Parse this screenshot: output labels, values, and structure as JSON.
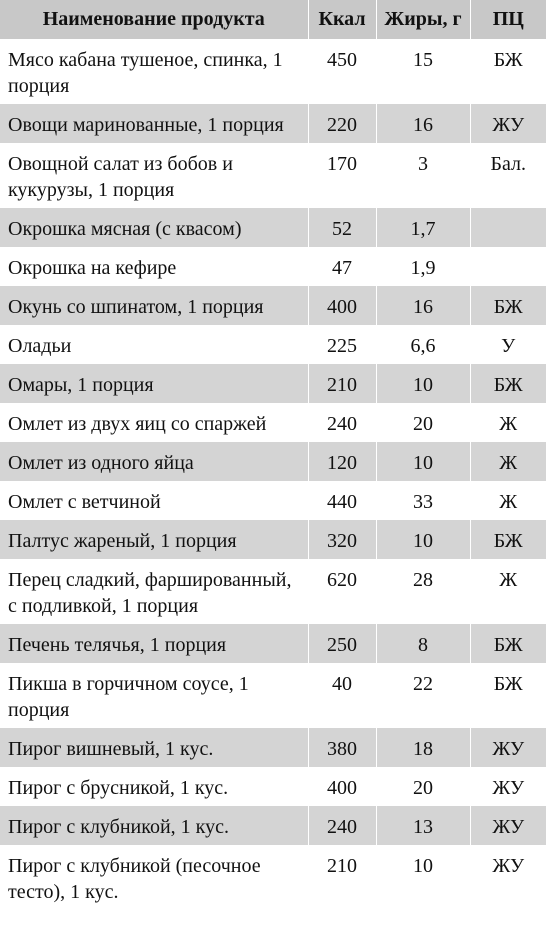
{
  "table": {
    "headers": {
      "name": "Наименование продукта",
      "kcal": "Ккал",
      "fat": "Жиры, г",
      "pc": "ПЦ"
    },
    "rows": [
      {
        "name": "Мясо кабана тушеное, спинка, 1 порция",
        "kcal": "450",
        "fat": "15",
        "pc": "БЖ"
      },
      {
        "name": "Овощи маринованные, 1 порция",
        "kcal": "220",
        "fat": "16",
        "pc": "ЖУ"
      },
      {
        "name": "Овощной салат из бобов и кукурузы, 1 порция",
        "kcal": "170",
        "fat": "3",
        "pc": "Бал."
      },
      {
        "name": "Окрошка мясная (с квасом)",
        "kcal": "52",
        "fat": "1,7",
        "pc": ""
      },
      {
        "name": "Окрошка на кефире",
        "kcal": "47",
        "fat": "1,9",
        "pc": ""
      },
      {
        "name": "Окунь со шпинатом, 1 порция",
        "kcal": "400",
        "fat": "16",
        "pc": "БЖ"
      },
      {
        "name": "Оладьи",
        "kcal": "225",
        "fat": "6,6",
        "pc": "У"
      },
      {
        "name": "Омары, 1 порция",
        "kcal": "210",
        "fat": "10",
        "pc": "БЖ"
      },
      {
        "name": "Омлет из двух яиц со спаржей",
        "kcal": "240",
        "fat": "20",
        "pc": "Ж"
      },
      {
        "name": "Омлет из одного яйца",
        "kcal": "120",
        "fat": "10",
        "pc": "Ж"
      },
      {
        "name": "Омлет с ветчиной",
        "kcal": "440",
        "fat": "33",
        "pc": "Ж"
      },
      {
        "name": "Палтус жареный, 1 порция",
        "kcal": "320",
        "fat": "10",
        "pc": "БЖ"
      },
      {
        "name": "Перец сладкий, фаршированный, с подливкой, 1 порция",
        "kcal": "620",
        "fat": "28",
        "pc": "Ж"
      },
      {
        "name": "Печень телячья, 1 порция",
        "kcal": "250",
        "fat": "8",
        "pc": "БЖ"
      },
      {
        "name": "Пикша в горчичном соусе, 1 порция",
        "kcal": "40",
        "fat": "22",
        "pc": "БЖ"
      },
      {
        "name": "Пирог вишневый, 1 кус.",
        "kcal": "380",
        "fat": "18",
        "pc": "ЖУ"
      },
      {
        "name": "Пирог с брусникой, 1 кус.",
        "kcal": "400",
        "fat": "20",
        "pc": "ЖУ"
      },
      {
        "name": "Пирог с клубникой, 1 кус.",
        "kcal": "240",
        "fat": "13",
        "pc": "ЖУ"
      },
      {
        "name": "Пирог с клубникой (песочное тесто), 1 кус.",
        "kcal": "210",
        "fat": "10",
        "pc": "ЖУ"
      }
    ]
  }
}
